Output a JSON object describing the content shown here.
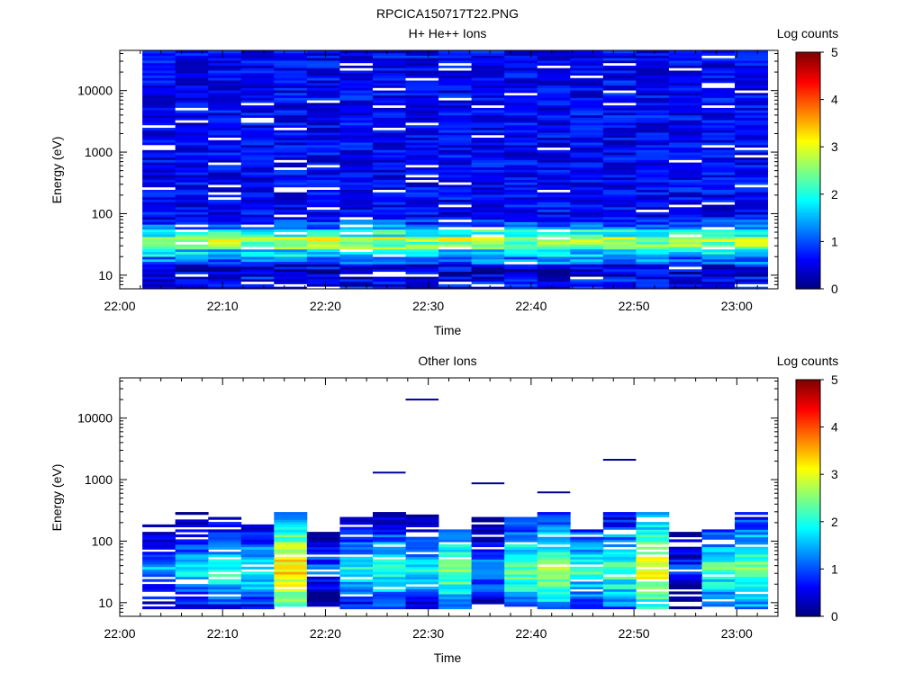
{
  "figure": {
    "title": "RPCICA150717T22.PNG"
  },
  "chart_data": [
    {
      "type": "heatmap",
      "title": "H+ He++ Ions",
      "xlabel": "Time",
      "ylabel": "Energy (eV)",
      "x_ticks": [
        "22:00",
        "22:10",
        "22:20",
        "22:30",
        "22:40",
        "22:50",
        "23:00"
      ],
      "y_ticks": [
        "10",
        "100",
        "1000",
        "10000"
      ],
      "y_scale": "log",
      "colorbar": {
        "label": "Log counts",
        "ticks": [
          "0",
          "1",
          "2",
          "3",
          "4",
          "5"
        ],
        "range": [
          0,
          5
        ]
      },
      "x_range_minutes": [
        0,
        64
      ],
      "y_range_eV": [
        6,
        45000
      ],
      "time_bins_minutes": [
        2.2,
        5.4,
        8.6,
        11.8,
        15.0,
        18.2,
        21.4,
        24.6,
        27.8,
        31.0,
        34.2,
        37.4,
        40.6,
        43.8,
        47.0,
        50.2,
        53.4,
        56.6,
        59.8
      ],
      "low_energy_profile": [
        {
          "energy_eV": 8,
          "value": 0.6
        },
        {
          "energy_eV": 11,
          "value": 0.4
        },
        {
          "energy_eV": 14,
          "value": 0.5
        },
        {
          "energy_eV": 18,
          "value": 1.2
        },
        {
          "energy_eV": 23,
          "value": 1.7
        },
        {
          "energy_eV": 30,
          "value": 2.5
        },
        {
          "energy_eV": 38,
          "value": 2.8
        },
        {
          "energy_eV": 48,
          "value": 2.0
        },
        {
          "energy_eV": 60,
          "value": 1.2
        },
        {
          "energy_eV": 75,
          "value": 0.9
        }
      ],
      "background_level": 0.6
    },
    {
      "type": "heatmap",
      "title": "Other Ions",
      "xlabel": "Time",
      "ylabel": "Energy (eV)",
      "x_ticks": [
        "22:00",
        "22:10",
        "22:20",
        "22:30",
        "22:40",
        "22:50",
        "23:00"
      ],
      "y_ticks": [
        "10",
        "100",
        "1000",
        "10000"
      ],
      "y_scale": "log",
      "colorbar": {
        "label": "Log counts",
        "ticks": [
          "0",
          "1",
          "2",
          "3",
          "4",
          "5"
        ],
        "range": [
          0,
          5
        ]
      },
      "x_range_minutes": [
        0,
        64
      ],
      "y_range_eV": [
        6,
        45000
      ],
      "time_bins_minutes": [
        2.2,
        5.4,
        8.6,
        11.8,
        15.0,
        18.2,
        21.4,
        24.6,
        27.8,
        31.0,
        34.2,
        37.4,
        40.6,
        43.8,
        47.0,
        50.2,
        53.4,
        56.6,
        59.8
      ],
      "data_top_eV": [
        230,
        380,
        440,
        190,
        420,
        190,
        250,
        1300,
        20000,
        160,
        870,
        250,
        620,
        160,
        2100,
        380,
        160,
        160,
        380
      ],
      "peak_values": [
        1.6,
        1.8,
        2.1,
        2.0,
        3.4,
        1.2,
        2.0,
        2.2,
        1.8,
        2.6,
        1.5,
        2.5,
        2.8,
        2.2,
        2.4,
        3.2,
        1.0,
        2.3,
        2.6
      ],
      "isolated_lines": [
        {
          "minute": 27.8,
          "energy_eV": 20000,
          "value": 0.1
        },
        {
          "minute": 24.6,
          "energy_eV": 1300,
          "value": 0.1
        },
        {
          "minute": 34.2,
          "energy_eV": 870,
          "value": 0.1
        },
        {
          "minute": 47.0,
          "energy_eV": 2100,
          "value": 0.1
        },
        {
          "minute": 40.6,
          "energy_eV": 620,
          "value": 0.1
        }
      ]
    }
  ]
}
